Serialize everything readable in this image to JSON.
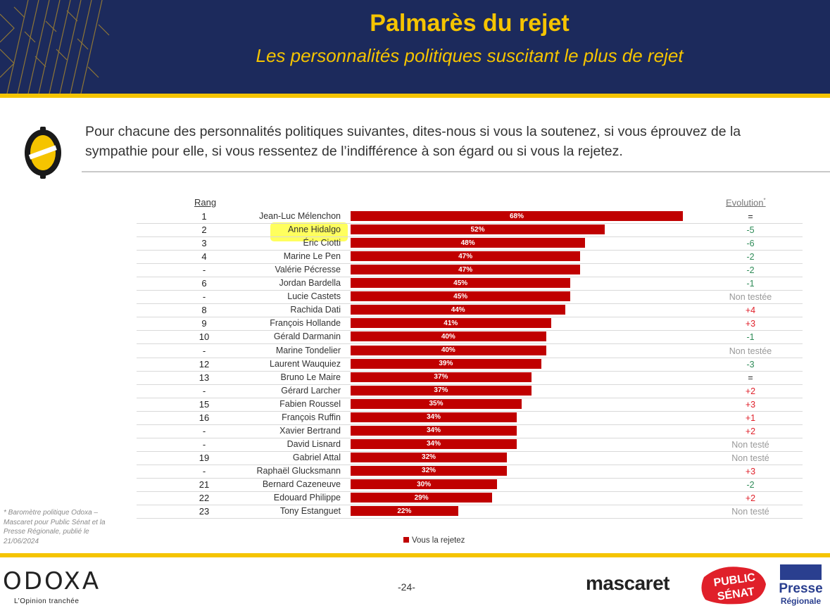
{
  "header": {
    "title": "Palmarès du rejet",
    "subtitle": "Les personnalités politiques suscitant le plus de rejet"
  },
  "question": "Pour chacune des personnalités politiques suivantes, dites-nous si vous la soutenez, si vous éprouvez de la sympathie pour elle, si vous ressentez de l’indifférence à son égard ou si vous la rejetez.",
  "table_headers": {
    "rang": "Rang",
    "evolution": "Evolution",
    "evolution_mark": "*"
  },
  "colors": {
    "navy": "#1c2a5c",
    "yellow": "#f5c400",
    "bar": "#c00000",
    "evo_green": "#2e8b57",
    "evo_red": "#e0202a",
    "evo_gray": "#999999"
  },
  "chart_data": {
    "type": "bar",
    "orientation": "horizontal",
    "categories": [
      "Jean-Luc Mélenchon",
      "Anne Hidalgo",
      "Éric Ciotti",
      "Marine Le Pen",
      "Valérie Pécresse",
      "Jordan Bardella",
      "Lucie Castets",
      "Rachida Dati",
      "François Hollande",
      "Gérald Darmanin",
      "Marine Tondelier",
      "Laurent Wauquiez",
      "Bruno Le Maire",
      "Gérard Larcher",
      "Fabien Roussel",
      "François Ruffin",
      "Xavier Bertrand",
      "David Lisnard",
      "Gabriel Attal",
      "Raphaël Glucksmann",
      "Bernard Cazeneuve",
      "Edouard Philippe",
      "Tony Estanguet"
    ],
    "series": [
      {
        "name": "Vous la rejetez",
        "values": [
          68,
          52,
          48,
          47,
          47,
          45,
          45,
          44,
          41,
          40,
          40,
          39,
          37,
          37,
          35,
          34,
          34,
          34,
          32,
          32,
          30,
          29,
          22
        ]
      }
    ],
    "value_labels": [
      "68%",
      "52%",
      "48%",
      "47%",
      "47%",
      "45%",
      "45%",
      "44%",
      "41%",
      "40%",
      "40%",
      "39%",
      "37%",
      "37%",
      "35%",
      "34%",
      "34%",
      "34%",
      "32%",
      "32%",
      "30%",
      "29%",
      "22%"
    ],
    "xlim": [
      0,
      100
    ],
    "legend": "bottom"
  },
  "rows": [
    {
      "rank": "1",
      "name": "Jean-Luc Mélenchon",
      "evo": "=",
      "evo_type": "neutral"
    },
    {
      "rank": "2",
      "name": "Anne Hidalgo",
      "evo": "-5",
      "evo_type": "down"
    },
    {
      "rank": "3",
      "name": "Éric Ciotti",
      "evo": "-6",
      "evo_type": "down"
    },
    {
      "rank": "4",
      "name": "Marine Le Pen",
      "evo": "-2",
      "evo_type": "down"
    },
    {
      "rank": "-",
      "name": "Valérie Pécresse",
      "evo": "-2",
      "evo_type": "down"
    },
    {
      "rank": "6",
      "name": "Jordan Bardella",
      "evo": "-1",
      "evo_type": "down"
    },
    {
      "rank": "-",
      "name": "Lucie Castets",
      "evo": "Non testée",
      "evo_type": "na"
    },
    {
      "rank": "8",
      "name": "Rachida Dati",
      "evo": "+4",
      "evo_type": "up"
    },
    {
      "rank": "9",
      "name": "François Hollande",
      "evo": "+3",
      "evo_type": "up"
    },
    {
      "rank": "10",
      "name": "Gérald Darmanin",
      "evo": "-1",
      "evo_type": "down"
    },
    {
      "rank": "-",
      "name": "Marine Tondelier",
      "evo": "Non testée",
      "evo_type": "na"
    },
    {
      "rank": "12",
      "name": "Laurent Wauquiez",
      "evo": "-3",
      "evo_type": "down"
    },
    {
      "rank": "13",
      "name": "Bruno Le Maire",
      "evo": "=",
      "evo_type": "neutral"
    },
    {
      "rank": "-",
      "name": "Gérard Larcher",
      "evo": "+2",
      "evo_type": "up"
    },
    {
      "rank": "15",
      "name": "Fabien Roussel",
      "evo": "+3",
      "evo_type": "up"
    },
    {
      "rank": "16",
      "name": "François Ruffin",
      "evo": "+1",
      "evo_type": "up"
    },
    {
      "rank": "-",
      "name": "Xavier Bertrand",
      "evo": "+2",
      "evo_type": "up"
    },
    {
      "rank": "-",
      "name": "David Lisnard",
      "evo": "Non testé",
      "evo_type": "na"
    },
    {
      "rank": "19",
      "name": "Gabriel Attal",
      "evo": "Non testé",
      "evo_type": "na"
    },
    {
      "rank": "-",
      "name": "Raphaël Glucksmann",
      "evo": "+3",
      "evo_type": "up"
    },
    {
      "rank": "21",
      "name": "Bernard Cazeneuve",
      "evo": "-2",
      "evo_type": "down"
    },
    {
      "rank": "22",
      "name": "Edouard Philippe",
      "evo": "+2",
      "evo_type": "up"
    },
    {
      "rank": "23",
      "name": "Tony Estanguet",
      "evo": "Non testé",
      "evo_type": "na"
    }
  ],
  "highlighted_name": "Anne Hidalgo",
  "legend_label": "Vous la rejetez",
  "footnote": "* Baromètre politique Odoxa – Mascaret pour Public Sénat et la Presse Régionale, publié le 21/06/2024",
  "footer": {
    "odoxa": "ODOXA",
    "odoxa_tagline": "L’Opinion tranchée",
    "page_number": "-24-",
    "mascaret": "mascaret",
    "public_senat_line1": "PUBLIC",
    "public_senat_line2": "SÉNAT",
    "presse_line1": "Presse",
    "presse_line2": "Régionale"
  }
}
